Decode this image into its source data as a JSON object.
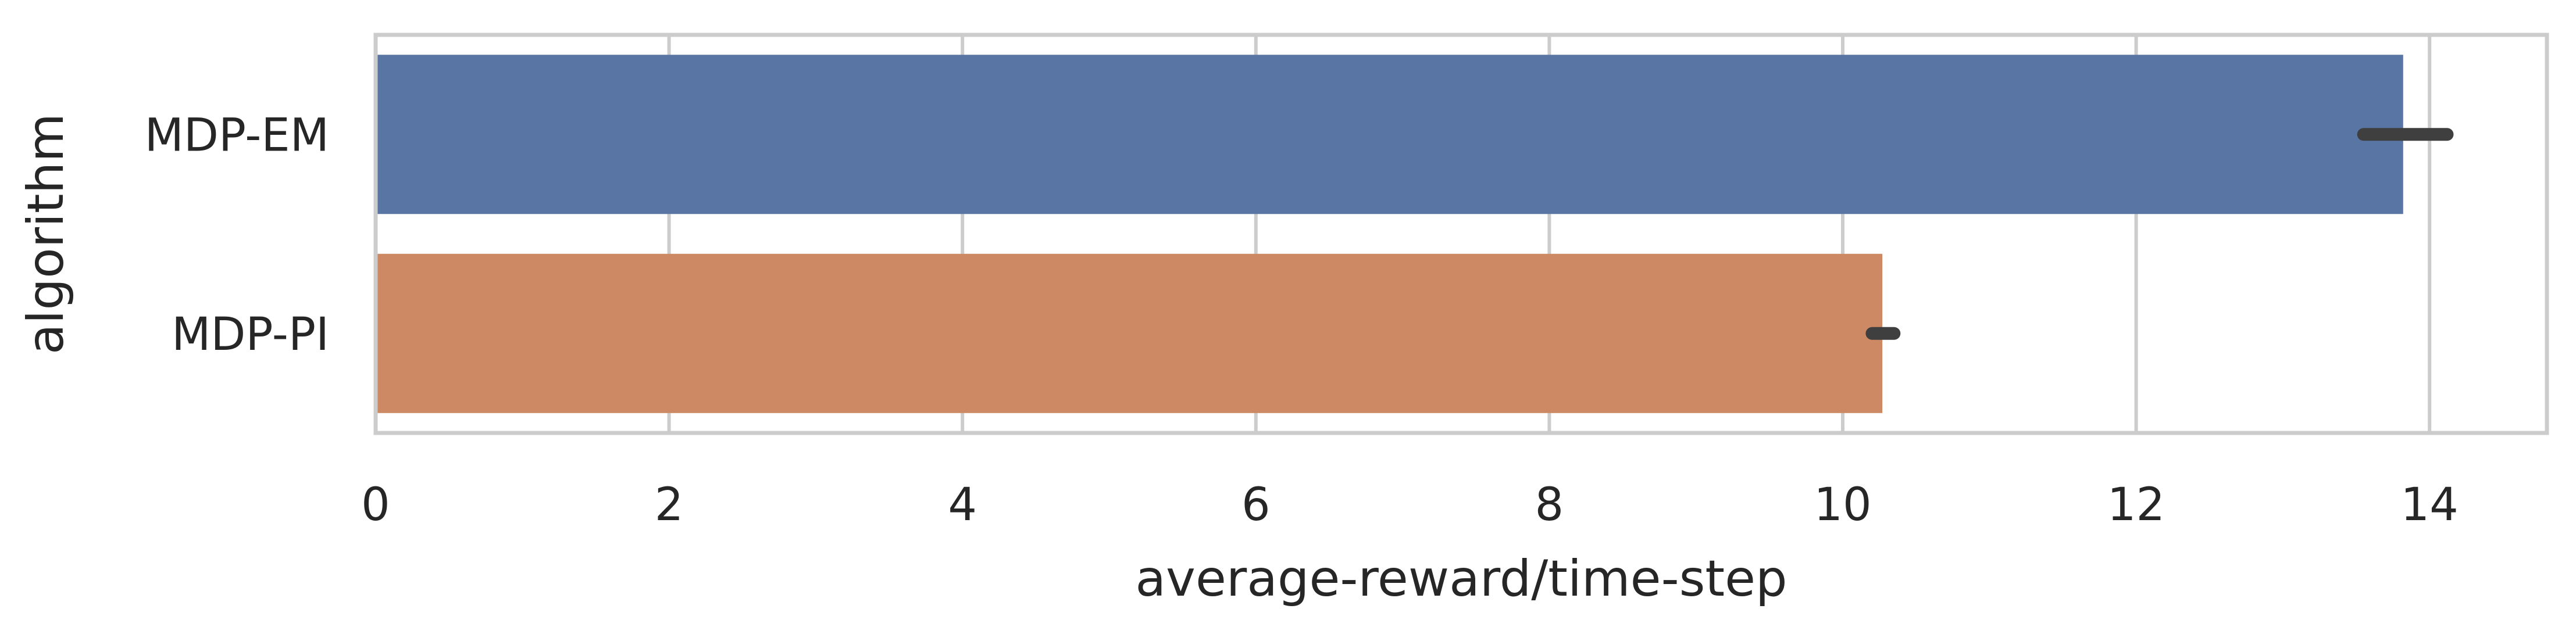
{
  "chart_data": {
    "type": "bar",
    "orientation": "horizontal",
    "categories": [
      "MDP-EM",
      "MDP-PI"
    ],
    "values": [
      13.82,
      10.27
    ],
    "error_bars": [
      [
        13.55,
        14.12
      ],
      [
        10.2,
        10.35
      ]
    ],
    "xlabel": "average-reward/time-step",
    "ylabel": "algorithm",
    "xlim": [
      0,
      14.8
    ],
    "xticks": [
      "0",
      "2",
      "4",
      "6",
      "8",
      "10",
      "12",
      "14"
    ],
    "grid": true,
    "colors": [
      "#5975a4",
      "#cc8963"
    ],
    "error_color": "#3f3f3f",
    "grid_color": "#cccccc",
    "frame_color": "#cccccc"
  }
}
